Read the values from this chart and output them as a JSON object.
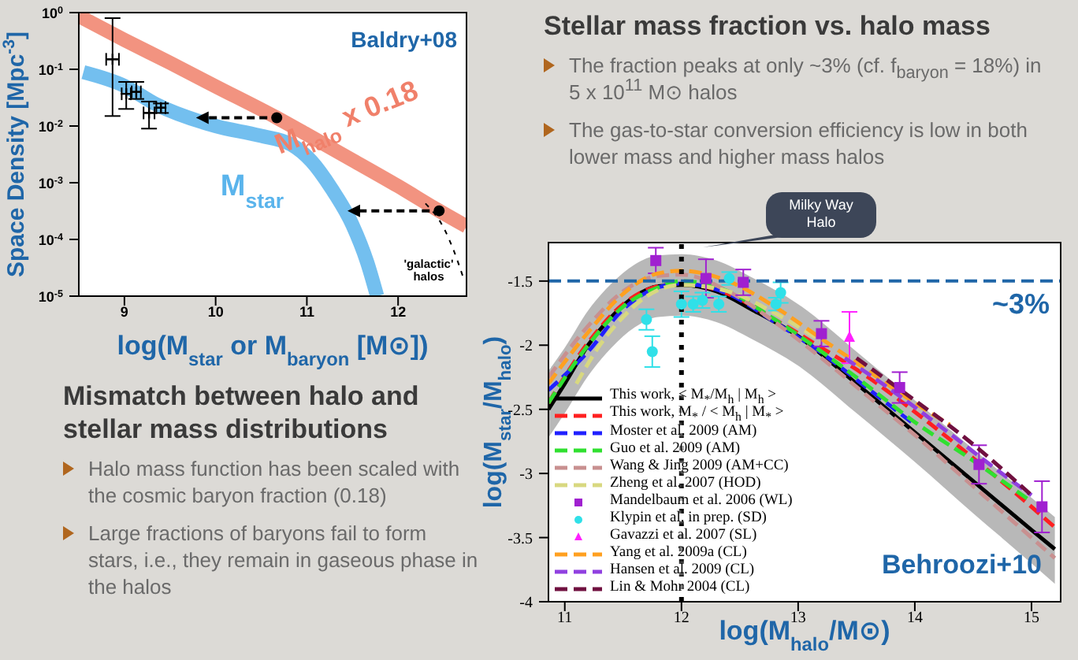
{
  "chart_data": [
    {
      "type": "line",
      "xlabel": "log(M$_{star}$ or M$_{baryon}$ [M⊙])",
      "ylabel": "Space Density [Mpc$^{-3}$]",
      "log": "y",
      "xlim": [
        8.5,
        12.75
      ],
      "xticks": [
        9,
        10,
        11,
        12
      ],
      "ylim": [
        1e-05,
        1
      ],
      "yticks": [
        {
          "value": 1e-05,
          "label": "10$^{-5}$"
        },
        {
          "value": 0.0001,
          "label": "10$^{-4}$"
        },
        {
          "value": 0.001,
          "label": "10$^{-3}$"
        },
        {
          "value": 0.01,
          "label": "10$^{-2}$"
        },
        {
          "value": 0.1,
          "label": "10$^{-1}$"
        },
        {
          "value": 1,
          "label": "10$^{0}$"
        }
      ],
      "annotations": [
        "Baldry+08",
        "'galactic' halos"
      ],
      "series": [
        {
          "name": "M$_{halo}$ x 0.18",
          "color": "#f0806a",
          "x": [
            8.5,
            9,
            9.5,
            10,
            10.67,
            11,
            11.5,
            12,
            12.45,
            12.75
          ],
          "values": [
            0.87,
            0.33,
            0.13,
            0.05,
            0.014,
            0.0071,
            0.0025,
            0.00087,
            0.00032,
            0.00017
          ]
        },
        {
          "name": "M$_{star}$",
          "color": "#5ab4ec",
          "x": [
            8.55,
            9,
            9.35,
            10,
            10.48,
            10.83,
            11.05,
            11.27,
            11.5,
            11.66,
            11.77
          ],
          "values": [
            0.089,
            0.051,
            0.024,
            0.01,
            0.0068,
            0.0047,
            0.0024,
            0.00079,
            0.00018,
            4e-05,
            1e-05
          ]
        },
        {
          "color": "#000000",
          "line_style": "dotted",
          "x": [
            12.3,
            12.5,
            12.6,
            12.72
          ],
          "values": [
            0.00043,
            0.00016,
            7e-05,
            2e-05
          ]
        },
        {
          "type": "scatter",
          "color": "#000000",
          "marker": "circle",
          "x": [
            10.67,
            12.45
          ],
          "values": [
            0.014,
            0.00032
          ]
        },
        {
          "type": "scatter",
          "color": "#000000",
          "marker": "cross",
          "x": [
            8.87,
            9.02,
            9.13,
            9.27,
            9.4
          ],
          "values": [
            0.15,
            0.037,
            0.04,
            0.017,
            0.021
          ],
          "errors": [
            [
              0.015,
              0.8
            ],
            [
              0.02,
              0.06
            ],
            [
              0.03,
              0.06
            ],
            [
              0.009,
              0.027
            ],
            [
              0.017,
              0.025
            ]
          ],
          "xerrors": [
            0.07,
            0.05,
            0.05,
            0.06,
            0.05
          ]
        }
      ]
    },
    {
      "type": "other",
      "title": "Stellar mass fraction vs. halo mass",
      "annotations": [
        "The fraction peaks at only ~3% (cf. f$_{baryon}$ = 18%) in 5 x 10$^{11}$ M⊙ halos",
        "The gas-to-star conversion efficiency is low in both lower mass and higher mass halos"
      ]
    },
    {
      "type": "other",
      "title": "Mismatch between halo and stellar mass distributions",
      "annotations": [
        "Halo mass function has been scaled with the cosmic baryon fraction (0.18)",
        "Large fractions of baryons fail to form stars, i.e., they remain in gaseous phase in the halos"
      ]
    },
    {
      "type": "line",
      "xlabel": "log(M$_{halo}$/M⊙)",
      "ylabel": "log(M$_{star}$/M$_{halo}$)",
      "xlim": [
        10.86,
        15.25
      ],
      "xticks": [
        11,
        12,
        13,
        14,
        15
      ],
      "ylim": [
        -4,
        -1.2
      ],
      "yticks": [
        -4,
        -3.5,
        -3,
        -2.5,
        -2,
        -1.5
      ],
      "legend": "bottom left",
      "ref_lines": [
        {
          "axis": "y",
          "value": -1.5,
          "color": "#1f66a8",
          "line_style": "dashed"
        },
        {
          "axis": "x",
          "value": 12,
          "color": "#000000",
          "line_style": "dotted"
        }
      ],
      "annotations": [
        "~3%",
        "Behroozi+10",
        "Milky Way Halo"
      ],
      "series": [
        {
          "name": "This work, < M$_{*}$/M$_{h}$ | M$_{h}$ >",
          "color": "#000000",
          "x": [
            10.86,
            11.0,
            11.2,
            11.4,
            11.6,
            11.8,
            12.0,
            12.3,
            12.6,
            13.0,
            13.5,
            14.0,
            14.5,
            15.0,
            15.2
          ],
          "values": [
            -2.5,
            -2.3,
            -2.0,
            -1.78,
            -1.62,
            -1.54,
            -1.53,
            -1.58,
            -1.72,
            -1.93,
            -2.3,
            -2.68,
            -3.06,
            -3.44,
            -3.59
          ],
          "upper": [
            -2.2,
            -2.02,
            -1.73,
            -1.52,
            -1.37,
            -1.3,
            -1.29,
            -1.34,
            -1.47,
            -1.68,
            -2.05,
            -2.43,
            -2.81,
            -3.19,
            -3.34
          ],
          "lower": [
            -2.72,
            -2.53,
            -2.24,
            -2.02,
            -1.86,
            -1.78,
            -1.77,
            -1.82,
            -1.95,
            -2.16,
            -2.53,
            -2.91,
            -3.31,
            -3.7,
            -3.86
          ]
        },
        {
          "name": "This work, M$_{*}$ / < M$_{h}$ | M$_{*}$ >",
          "color": "#ff2020",
          "line_style": "dashed",
          "x": [
            10.86,
            11.2,
            11.5,
            11.8,
            12.0,
            12.4,
            12.8,
            13.2,
            13.6,
            14.0,
            14.5,
            15.0,
            15.2
          ],
          "values": [
            -2.45,
            -1.98,
            -1.68,
            -1.54,
            -1.52,
            -1.6,
            -1.8,
            -2.02,
            -2.25,
            -2.52,
            -2.88,
            -3.26,
            -3.42
          ]
        },
        {
          "name": "Moster et al. 2009 (AM)",
          "color": "#2020ff",
          "line_style": "dashed",
          "x": [
            10.86,
            11.2,
            11.5,
            11.8,
            12.0,
            12.4,
            12.8,
            13.2,
            13.6,
            14.0
          ],
          "values": [
            -2.35,
            -2.05,
            -1.72,
            -1.55,
            -1.52,
            -1.6,
            -1.82,
            -2.06,
            -2.34,
            -2.62
          ]
        },
        {
          "name": "Guo et al. 2009 (AM)",
          "color": "#30e030",
          "line_style": "dashed",
          "x": [
            10.86,
            11.2,
            11.5,
            11.8,
            12.0,
            12.4,
            12.8,
            13.2,
            13.6,
            14.0,
            14.5,
            15.0
          ],
          "values": [
            -2.45,
            -2.0,
            -1.7,
            -1.55,
            -1.5,
            -1.58,
            -1.8,
            -2.05,
            -2.32,
            -2.6,
            -2.9,
            -3.22
          ]
        },
        {
          "name": "Wang & Jing 2009 (AM+CC)",
          "color": "#c89090",
          "line_style": "dashed",
          "x": [
            10.86,
            11.2,
            11.5,
            11.8,
            12.0,
            12.4,
            12.8,
            13.2,
            13.6,
            14.0,
            14.5,
            15.0,
            15.2
          ],
          "values": [
            -2.25,
            -1.85,
            -1.58,
            -1.46,
            -1.45,
            -1.58,
            -1.82,
            -2.1,
            -2.4,
            -2.7,
            -3.1,
            -3.5,
            -3.66
          ]
        },
        {
          "name": "Zheng et al. 2007 (HOD)",
          "color": "#d8d880",
          "line_style": "dashed",
          "x": [
            11.1,
            11.3,
            11.5,
            11.7,
            12.0,
            12.4,
            12.8,
            13.2
          ],
          "values": [
            -2.3,
            -2.0,
            -1.78,
            -1.62,
            -1.53,
            -1.58,
            -1.75,
            -1.97
          ]
        },
        {
          "type": "scatter",
          "name": "Mandelbaum et al. 2006 (WL)",
          "color": "#a020d0",
          "marker": "square",
          "x": [
            11.78,
            12.21,
            12.53,
            13.2,
            13.87,
            14.55,
            15.09
          ],
          "values": [
            -1.34,
            -1.48,
            -1.51,
            -1.91,
            -2.33,
            -2.93,
            -3.26
          ],
          "errors": [
            0.1,
            0.15,
            0.1,
            0.1,
            0.12,
            0.15,
            0.2
          ]
        },
        {
          "type": "scatter",
          "name": "Klypin et al. in prep. (SD)",
          "color": "#30e0e8",
          "marker": "circle",
          "x": [
            11.7,
            11.75,
            12.0,
            12.1,
            12.18,
            12.32,
            12.41,
            12.81,
            12.85
          ],
          "values": [
            -1.8,
            -2.05,
            -1.68,
            -1.68,
            -1.65,
            -1.68,
            -1.48,
            -1.68,
            -1.59
          ],
          "errors": [
            0.08,
            0.12,
            0.1,
            0.06,
            0.06,
            0.06,
            0.05,
            0.05,
            0.08
          ]
        },
        {
          "type": "scatter",
          "name": "Gavazzi et al. 2007 (SL)",
          "color": "#ff20ff",
          "marker": "triangle",
          "x": [
            13.44
          ],
          "values": [
            -1.94
          ],
          "errors": [
            0.2
          ]
        },
        {
          "name": "Yang et al. 2009a (CL)",
          "color": "#ffa020",
          "line_style": "dashed",
          "x": [
            10.86,
            11.2,
            11.5,
            11.8,
            12.0,
            12.4,
            12.8,
            13.2,
            13.6,
            14.0,
            14.3
          ],
          "values": [
            -2.3,
            -1.9,
            -1.6,
            -1.44,
            -1.42,
            -1.5,
            -1.7,
            -1.95,
            -2.2,
            -2.45,
            -2.62
          ]
        },
        {
          "name": "Hansen et al. 2009 (CL)",
          "color": "#9040e0",
          "line_style": "dashed",
          "x": [
            13.4,
            13.8,
            14.2,
            14.6,
            15.0
          ],
          "values": [
            -2.1,
            -2.35,
            -2.62,
            -2.9,
            -3.17
          ]
        },
        {
          "name": "Lin & Mohr 2004 (CL)",
          "color": "#701040",
          "line_style": "dashed",
          "x": [
            13.5,
            14.0,
            14.4,
            15.0
          ],
          "values": [
            -2.1,
            -2.43,
            -2.7,
            -3.17
          ]
        }
      ]
    }
  ]
}
